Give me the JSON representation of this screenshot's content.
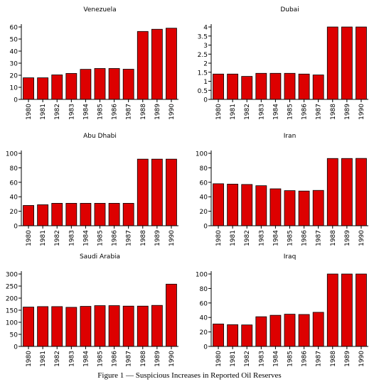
{
  "caption": "Figure 1 — Suspicious Increases in Reported Oil Reserves",
  "colors": {
    "bar": "#dd0000",
    "axis": "#000000",
    "background": "#ffffff"
  },
  "chart_data": [
    {
      "type": "bar",
      "title": "Venezuela",
      "categories": [
        "1980",
        "1981",
        "1982",
        "1983",
        "1984",
        "1985",
        "1986",
        "1987",
        "1988",
        "1989",
        "1990"
      ],
      "values": [
        17.9,
        17.9,
        20.3,
        21.5,
        24.9,
        25.6,
        25.6,
        25,
        56.3,
        58.1,
        59
      ],
      "ylim": [
        0,
        60
      ],
      "yticks": [
        0,
        10,
        20,
        30,
        40,
        50,
        60
      ]
    },
    {
      "type": "bar",
      "title": "Dubai",
      "categories": [
        "1980",
        "1981",
        "1982",
        "1983",
        "1984",
        "1985",
        "1986",
        "1987",
        "1988",
        "1989",
        "1990"
      ],
      "values": [
        1.4,
        1.4,
        1.27,
        1.44,
        1.44,
        1.44,
        1.4,
        1.35,
        4.0,
        4.0,
        4.0
      ],
      "ylim": [
        0,
        4
      ],
      "yticks": [
        0,
        0.5,
        1,
        1.5,
        2,
        2.5,
        3,
        3.5,
        4
      ]
    },
    {
      "type": "bar",
      "title": "Abu Dhabi",
      "categories": [
        "1980",
        "1981",
        "1982",
        "1983",
        "1984",
        "1985",
        "1986",
        "1987",
        "1988",
        "1989",
        "1990"
      ],
      "values": [
        28,
        29,
        31,
        31,
        31,
        31,
        31,
        31,
        92,
        92,
        92
      ],
      "ylim": [
        0,
        100
      ],
      "yticks": [
        0,
        20,
        40,
        60,
        80,
        100
      ]
    },
    {
      "type": "bar",
      "title": "Iran",
      "categories": [
        "1980",
        "1981",
        "1982",
        "1983",
        "1984",
        "1985",
        "1986",
        "1987",
        "1988",
        "1989",
        "1990"
      ],
      "values": [
        58,
        57.5,
        57,
        55.3,
        51,
        48.5,
        47.9,
        48.8,
        92.9,
        92.9,
        93
      ],
      "ylim": [
        0,
        100
      ],
      "yticks": [
        0,
        20,
        40,
        60,
        80,
        100
      ]
    },
    {
      "type": "bar",
      "title": "Saudi Arabia",
      "categories": [
        "1980",
        "1981",
        "1982",
        "1983",
        "1984",
        "1985",
        "1986",
        "1987",
        "1988",
        "1989",
        "1990"
      ],
      "values": [
        163,
        165,
        165,
        162,
        166,
        169,
        169,
        167,
        167,
        170,
        258
      ],
      "ylim": [
        0,
        300
      ],
      "yticks": [
        0,
        50,
        100,
        150,
        200,
        250,
        300
      ]
    },
    {
      "type": "bar",
      "title": "Iraq",
      "categories": [
        "1980",
        "1981",
        "1982",
        "1983",
        "1984",
        "1985",
        "1986",
        "1987",
        "1988",
        "1989",
        "1990"
      ],
      "values": [
        31,
        30,
        29.7,
        41,
        43,
        44.5,
        44.1,
        47.1,
        100,
        100,
        100
      ],
      "ylim": [
        0,
        100
      ],
      "yticks": [
        0,
        20,
        40,
        60,
        80,
        100
      ]
    }
  ]
}
